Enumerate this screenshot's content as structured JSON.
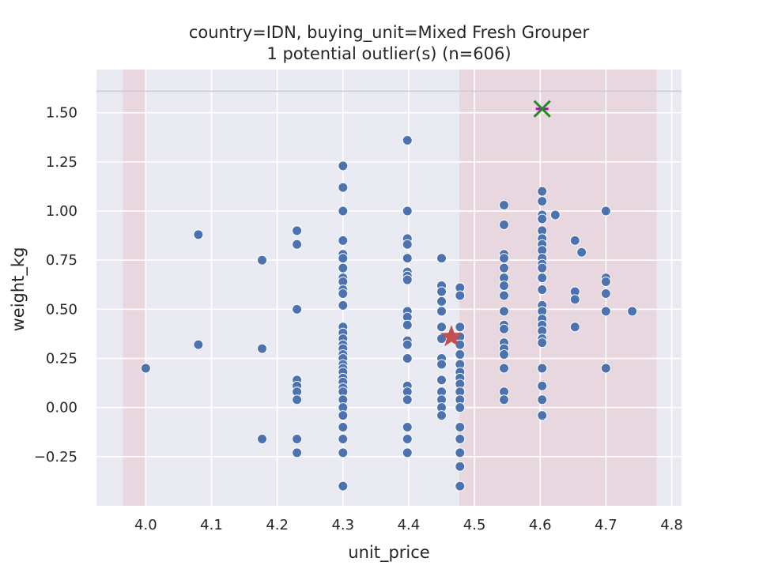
{
  "chart_data": {
    "type": "scatter",
    "title": "country=IDN, buying_unit=Mixed Fresh Grouper",
    "subtitle": "1 potential outlier(s) (n=606)",
    "xlabel": "unit_price",
    "ylabel": "weight_kg",
    "xlim": [
      3.925,
      4.815
    ],
    "ylim": [
      -0.5,
      1.72
    ],
    "xticks": [
      4.0,
      4.1,
      4.2,
      4.3,
      4.4,
      4.5,
      4.6,
      4.7,
      4.8
    ],
    "xtick_labels": [
      "4.0",
      "4.1",
      "4.2",
      "4.3",
      "4.4",
      "4.5",
      "4.6",
      "4.7",
      "4.8"
    ],
    "yticks": [
      -0.25,
      0.0,
      0.25,
      0.5,
      0.75,
      1.0,
      1.25,
      1.5
    ],
    "ytick_labels": [
      "−0.25",
      "0.00",
      "0.25",
      "0.50",
      "0.75",
      "1.00",
      "1.25",
      "1.50"
    ],
    "grid": true,
    "colors": {
      "background": "#eaeaf2",
      "points": "#4c72b0",
      "shade": "#e8d0d8",
      "hline": "#c9c9e6",
      "mean_marker": "#c44e52",
      "outlier_x": "#228b22",
      "outlier_dash": "#c000c0"
    },
    "shaded_x_ranges": [
      [
        3.965,
        4.0
      ],
      [
        4.477,
        4.777
      ]
    ],
    "hline_y": 1.61,
    "mean_marker": {
      "x": 4.465,
      "y": 0.36,
      "shape": "star"
    },
    "outlier": {
      "x": 4.603,
      "y": 1.52,
      "shape": "x"
    },
    "series": [
      {
        "points": [
          [
            4.0,
            0.2
          ],
          [
            4.08,
            0.88
          ],
          [
            4.08,
            0.32
          ],
          [
            4.177,
            0.75
          ],
          [
            4.177,
            0.3
          ],
          [
            4.177,
            -0.16
          ],
          [
            4.23,
            0.9
          ],
          [
            4.23,
            0.83
          ],
          [
            4.23,
            0.5
          ],
          [
            4.23,
            0.14
          ],
          [
            4.23,
            0.11
          ],
          [
            4.23,
            0.08
          ],
          [
            4.23,
            0.04
          ],
          [
            4.23,
            -0.16
          ],
          [
            4.23,
            -0.23
          ],
          [
            4.3,
            1.23
          ],
          [
            4.3,
            1.12
          ],
          [
            4.3,
            1.0
          ],
          [
            4.3,
            0.85
          ],
          [
            4.3,
            0.78
          ],
          [
            4.3,
            0.76
          ],
          [
            4.3,
            0.71
          ],
          [
            4.3,
            0.66
          ],
          [
            4.3,
            0.64
          ],
          [
            4.3,
            0.6
          ],
          [
            4.3,
            0.58
          ],
          [
            4.3,
            0.52
          ],
          [
            4.3,
            0.41
          ],
          [
            4.3,
            0.38
          ],
          [
            4.3,
            0.35
          ],
          [
            4.3,
            0.32
          ],
          [
            4.3,
            0.3
          ],
          [
            4.3,
            0.27
          ],
          [
            4.3,
            0.25
          ],
          [
            4.3,
            0.22
          ],
          [
            4.3,
            0.2
          ],
          [
            4.3,
            0.18
          ],
          [
            4.3,
            0.15
          ],
          [
            4.3,
            0.13
          ],
          [
            4.3,
            0.1
          ],
          [
            4.3,
            0.08
          ],
          [
            4.3,
            0.04
          ],
          [
            4.3,
            0.0
          ],
          [
            4.3,
            -0.04
          ],
          [
            4.3,
            -0.1
          ],
          [
            4.3,
            -0.16
          ],
          [
            4.3,
            -0.23
          ],
          [
            4.3,
            -0.4
          ],
          [
            4.398,
            1.36
          ],
          [
            4.398,
            1.0
          ],
          [
            4.398,
            0.86
          ],
          [
            4.398,
            0.83
          ],
          [
            4.398,
            0.76
          ],
          [
            4.398,
            0.69
          ],
          [
            4.398,
            0.67
          ],
          [
            4.398,
            0.65
          ],
          [
            4.398,
            0.49
          ],
          [
            4.398,
            0.46
          ],
          [
            4.398,
            0.42
          ],
          [
            4.398,
            0.34
          ],
          [
            4.398,
            0.32
          ],
          [
            4.398,
            0.25
          ],
          [
            4.398,
            0.11
          ],
          [
            4.398,
            0.08
          ],
          [
            4.398,
            0.04
          ],
          [
            4.398,
            -0.1
          ],
          [
            4.398,
            -0.16
          ],
          [
            4.398,
            -0.23
          ],
          [
            4.45,
            0.76
          ],
          [
            4.45,
            0.62
          ],
          [
            4.45,
            0.59
          ],
          [
            4.45,
            0.54
          ],
          [
            4.45,
            0.49
          ],
          [
            4.45,
            0.41
          ],
          [
            4.45,
            0.35
          ],
          [
            4.45,
            0.25
          ],
          [
            4.45,
            0.22
          ],
          [
            4.45,
            0.14
          ],
          [
            4.45,
            0.08
          ],
          [
            4.45,
            0.04
          ],
          [
            4.45,
            0.0
          ],
          [
            4.45,
            -0.04
          ],
          [
            4.478,
            0.61
          ],
          [
            4.478,
            0.57
          ],
          [
            4.478,
            0.41
          ],
          [
            4.478,
            0.36
          ],
          [
            4.478,
            0.32
          ],
          [
            4.478,
            0.27
          ],
          [
            4.478,
            0.22
          ],
          [
            4.478,
            0.18
          ],
          [
            4.478,
            0.15
          ],
          [
            4.478,
            0.12
          ],
          [
            4.478,
            0.08
          ],
          [
            4.478,
            0.04
          ],
          [
            4.478,
            0.0
          ],
          [
            4.478,
            -0.1
          ],
          [
            4.478,
            -0.16
          ],
          [
            4.478,
            -0.23
          ],
          [
            4.478,
            -0.3
          ],
          [
            4.478,
            -0.4
          ],
          [
            4.545,
            1.03
          ],
          [
            4.545,
            0.93
          ],
          [
            4.545,
            0.78
          ],
          [
            4.545,
            0.76
          ],
          [
            4.545,
            0.71
          ],
          [
            4.545,
            0.66
          ],
          [
            4.545,
            0.62
          ],
          [
            4.545,
            0.57
          ],
          [
            4.545,
            0.49
          ],
          [
            4.545,
            0.42
          ],
          [
            4.545,
            0.4
          ],
          [
            4.545,
            0.33
          ],
          [
            4.545,
            0.3
          ],
          [
            4.545,
            0.27
          ],
          [
            4.545,
            0.2
          ],
          [
            4.545,
            0.08
          ],
          [
            4.545,
            0.04
          ],
          [
            4.603,
            1.1
          ],
          [
            4.603,
            1.05
          ],
          [
            4.603,
            0.98
          ],
          [
            4.603,
            0.96
          ],
          [
            4.603,
            0.9
          ],
          [
            4.603,
            0.86
          ],
          [
            4.603,
            0.83
          ],
          [
            4.603,
            0.8
          ],
          [
            4.603,
            0.76
          ],
          [
            4.603,
            0.73
          ],
          [
            4.603,
            0.71
          ],
          [
            4.603,
            0.66
          ],
          [
            4.603,
            0.6
          ],
          [
            4.603,
            0.52
          ],
          [
            4.603,
            0.49
          ],
          [
            4.603,
            0.45
          ],
          [
            4.603,
            0.42
          ],
          [
            4.603,
            0.39
          ],
          [
            4.603,
            0.35
          ],
          [
            4.603,
            0.33
          ],
          [
            4.603,
            0.2
          ],
          [
            4.603,
            0.11
          ],
          [
            4.603,
            0.04
          ],
          [
            4.603,
            -0.04
          ],
          [
            4.623,
            0.98
          ],
          [
            4.653,
            0.85
          ],
          [
            4.653,
            0.59
          ],
          [
            4.653,
            0.55
          ],
          [
            4.653,
            0.41
          ],
          [
            4.663,
            0.79
          ],
          [
            4.7,
            1.0
          ],
          [
            4.7,
            0.66
          ],
          [
            4.7,
            0.64
          ],
          [
            4.7,
            0.58
          ],
          [
            4.7,
            0.49
          ],
          [
            4.7,
            0.2
          ],
          [
            4.74,
            0.49
          ]
        ]
      }
    ]
  }
}
